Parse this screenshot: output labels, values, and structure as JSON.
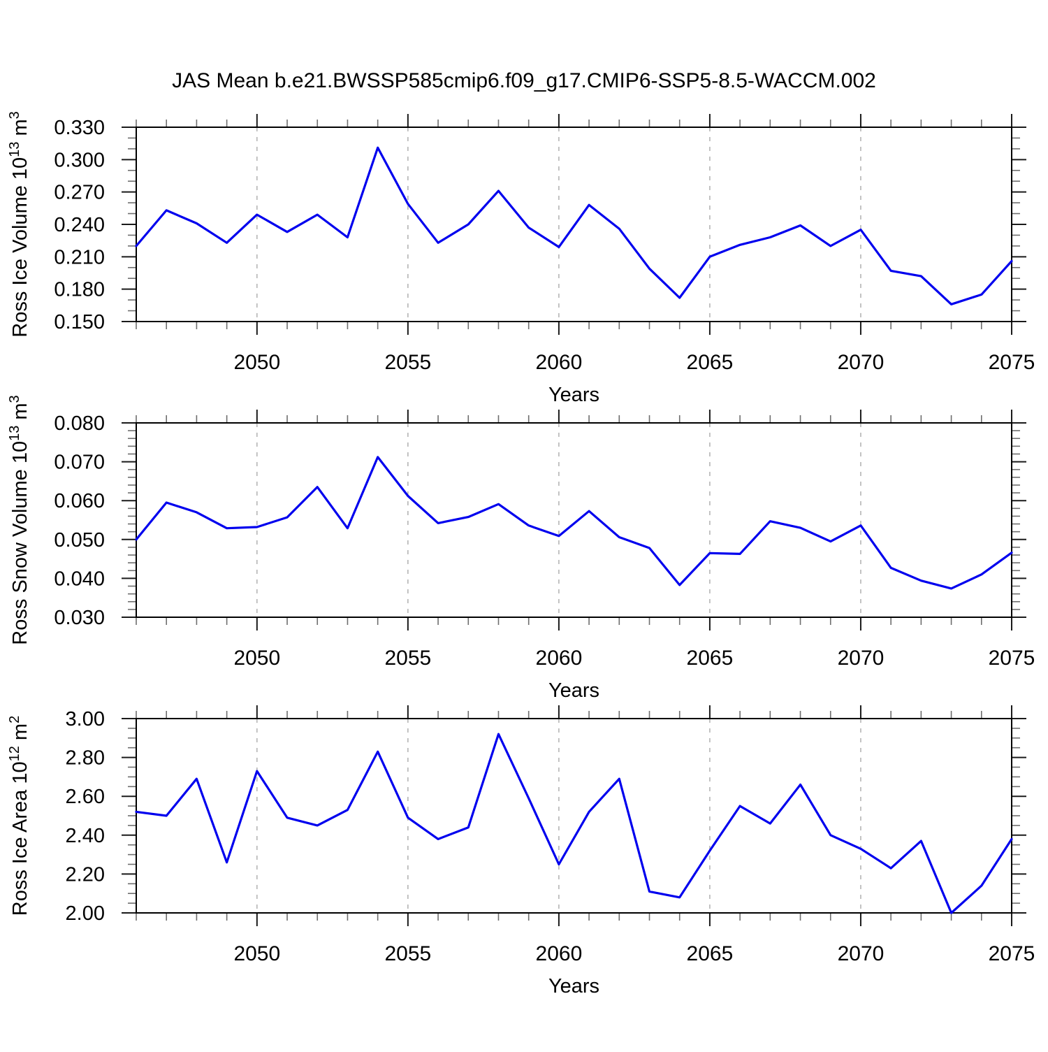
{
  "title": "JAS Mean b.e21.BWSSP585cmip6.f09_g17.CMIP6-SSP5-8.5-WACCM.002",
  "line_color": "#0000ee",
  "x_axis": {
    "label": "Years",
    "start": 2046,
    "end": 2075,
    "major_ticks": [
      2050,
      2055,
      2060,
      2065,
      2070,
      2075
    ],
    "major_tick_labels": [
      "2050",
      "2055",
      "2060",
      "2065",
      "2070",
      "2075"
    ],
    "minor_step": 1,
    "gridlines": [
      2050,
      2055,
      2060,
      2065,
      2070
    ]
  },
  "chart_data": [
    {
      "type": "line",
      "name": "ross-ice-volume",
      "ylabel": "Ross Ice Volume 10¹³ m³",
      "ylabel_parts": [
        [
          "Ross Ice Volume 10",
          false
        ],
        [
          "13",
          true
        ],
        [
          " m",
          false
        ],
        [
          "3",
          true
        ]
      ],
      "xlabel": "Years",
      "ylim": [
        0.15,
        0.33
      ],
      "yticks": [
        0.15,
        0.18,
        0.21,
        0.24,
        0.27,
        0.3,
        0.33
      ],
      "ytick_labels": [
        "0.150",
        "0.180",
        "0.210",
        "0.240",
        "0.270",
        "0.300",
        "0.330"
      ],
      "y_minor_step": 0.01,
      "grid": "vertical-dashed",
      "legend": "none",
      "x": [
        2046,
        2047,
        2048,
        2049,
        2050,
        2051,
        2052,
        2053,
        2054,
        2055,
        2056,
        2057,
        2058,
        2059,
        2060,
        2061,
        2062,
        2063,
        2064,
        2065,
        2066,
        2067,
        2068,
        2069,
        2070,
        2071,
        2072,
        2073,
        2074,
        2075
      ],
      "values": [
        0.22,
        0.253,
        0.241,
        0.223,
        0.249,
        0.233,
        0.249,
        0.228,
        0.311,
        0.259,
        0.223,
        0.24,
        0.271,
        0.237,
        0.219,
        0.258,
        0.236,
        0.199,
        0.172,
        0.21,
        0.221,
        0.228,
        0.239,
        0.22,
        0.235,
        0.197,
        0.192,
        0.166,
        0.175,
        0.206
      ]
    },
    {
      "type": "line",
      "name": "ross-snow-volume",
      "ylabel": "Ross Snow Volume 10¹³ m³",
      "ylabel_parts": [
        [
          "Ross Snow Volume 10",
          false
        ],
        [
          "13",
          true
        ],
        [
          " m",
          false
        ],
        [
          "3",
          true
        ]
      ],
      "xlabel": "Years",
      "ylim": [
        0.03,
        0.08
      ],
      "yticks": [
        0.03,
        0.04,
        0.05,
        0.06,
        0.07,
        0.08
      ],
      "ytick_labels": [
        "0.030",
        "0.040",
        "0.050",
        "0.060",
        "0.070",
        "0.080"
      ],
      "y_minor_step": 0.002,
      "grid": "vertical-dashed",
      "legend": "none",
      "x": [
        2046,
        2047,
        2048,
        2049,
        2050,
        2051,
        2052,
        2053,
        2054,
        2055,
        2056,
        2057,
        2058,
        2059,
        2060,
        2061,
        2062,
        2063,
        2064,
        2065,
        2066,
        2067,
        2068,
        2069,
        2070,
        2071,
        2072,
        2073,
        2074,
        2075
      ],
      "values": [
        0.05,
        0.0595,
        0.057,
        0.0529,
        0.0532,
        0.0557,
        0.0635,
        0.0529,
        0.0712,
        0.0612,
        0.0542,
        0.0558,
        0.0591,
        0.0536,
        0.0509,
        0.0573,
        0.0506,
        0.0478,
        0.0383,
        0.0465,
        0.0463,
        0.0547,
        0.053,
        0.0495,
        0.0536,
        0.0427,
        0.0394,
        0.0374,
        0.041,
        0.0466
      ]
    },
    {
      "type": "line",
      "name": "ross-ice-area",
      "ylabel": "Ross Ice Area 10¹² m²",
      "ylabel_parts": [
        [
          "Ross Ice Area 10",
          false
        ],
        [
          "12",
          true
        ],
        [
          " m",
          false
        ],
        [
          "2",
          true
        ]
      ],
      "xlabel": "Years",
      "ylim": [
        2.0,
        3.0
      ],
      "yticks": [
        2.0,
        2.2,
        2.4,
        2.6,
        2.8,
        3.0
      ],
      "ytick_labels": [
        "2.00",
        "2.20",
        "2.40",
        "2.60",
        "2.80",
        "3.00"
      ],
      "y_minor_step": 0.05,
      "grid": "vertical-dashed",
      "legend": "none",
      "x": [
        2046,
        2047,
        2048,
        2049,
        2050,
        2051,
        2052,
        2053,
        2054,
        2055,
        2056,
        2057,
        2058,
        2059,
        2060,
        2061,
        2062,
        2063,
        2064,
        2065,
        2066,
        2067,
        2068,
        2069,
        2070,
        2071,
        2072,
        2073,
        2074,
        2075
      ],
      "values": [
        2.52,
        2.5,
        2.69,
        2.26,
        2.73,
        2.49,
        2.45,
        2.53,
        2.83,
        2.49,
        2.38,
        2.44,
        2.92,
        2.59,
        2.25,
        2.52,
        2.69,
        2.11,
        2.08,
        2.32,
        2.55,
        2.46,
        2.66,
        2.4,
        2.33,
        2.23,
        2.37,
        2.0,
        2.14,
        2.38
      ]
    }
  ]
}
